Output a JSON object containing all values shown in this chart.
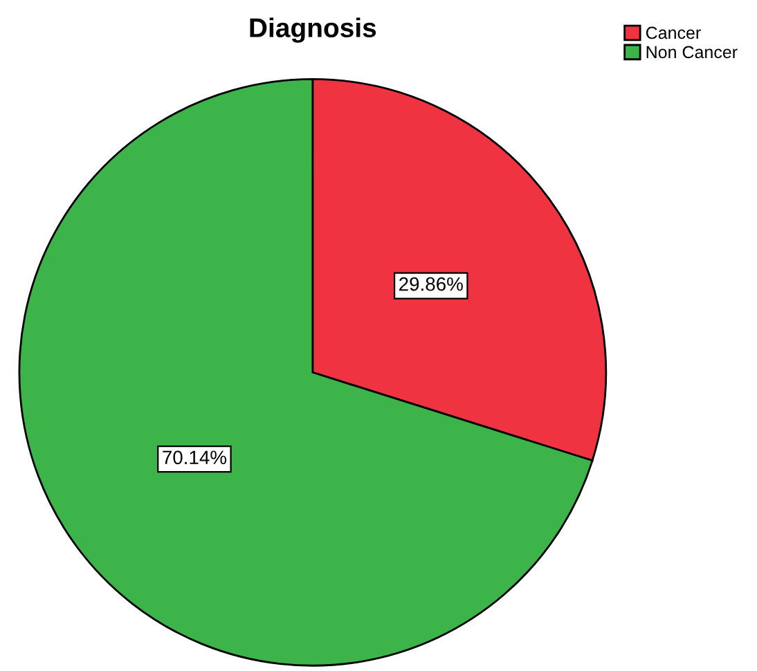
{
  "chart_data": {
    "type": "pie",
    "title": "Diagnosis",
    "categories": [
      "Cancer",
      "Non Cancer"
    ],
    "values": [
      29.86,
      70.14
    ],
    "colors": [
      "#ef3340",
      "#3cb44a"
    ],
    "value_labels": [
      "29.86%",
      "70.14%"
    ],
    "legend": "top right"
  }
}
